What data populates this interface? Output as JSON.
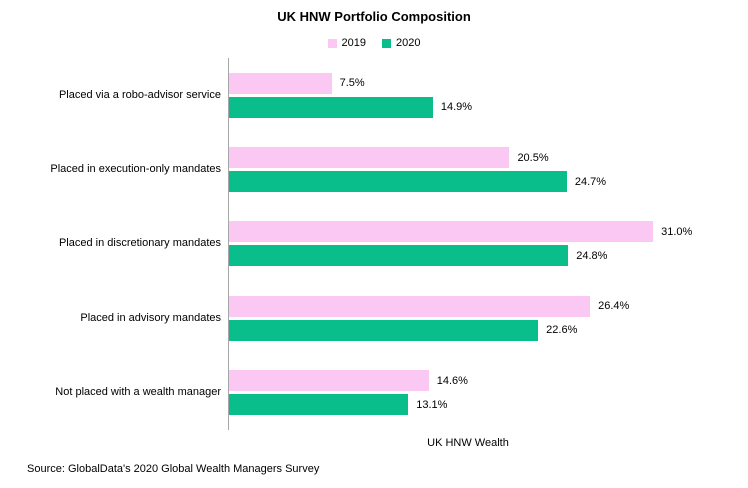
{
  "chart_data": {
    "type": "bar",
    "orientation": "horizontal",
    "title": "UK HNW Portfolio Composition",
    "xlabel": "UK HNW Wealth",
    "value_suffix": "%",
    "xlim": [
      0,
      31
    ],
    "grid": false,
    "legend_position": "top",
    "categories": [
      "Placed via a robo-advisor service",
      "Placed in execution-only mandates",
      "Placed in discretionary mandates",
      "Placed in advisory mandates",
      "Not placed with a wealth manager"
    ],
    "series": [
      {
        "name": "2019",
        "color": "#FBC7F3",
        "values": [
          7.5,
          20.5,
          31.0,
          26.4,
          14.6
        ]
      },
      {
        "name": "2020",
        "color": "#0ABE8C",
        "values": [
          14.9,
          24.7,
          24.8,
          22.6,
          13.1
        ]
      }
    ]
  },
  "source": "Source: GlobalData's 2020 Global Wealth Managers Survey",
  "colors": {
    "axis": "#A6A6A6",
    "text": "#000000",
    "background": "#FFFFFF"
  }
}
